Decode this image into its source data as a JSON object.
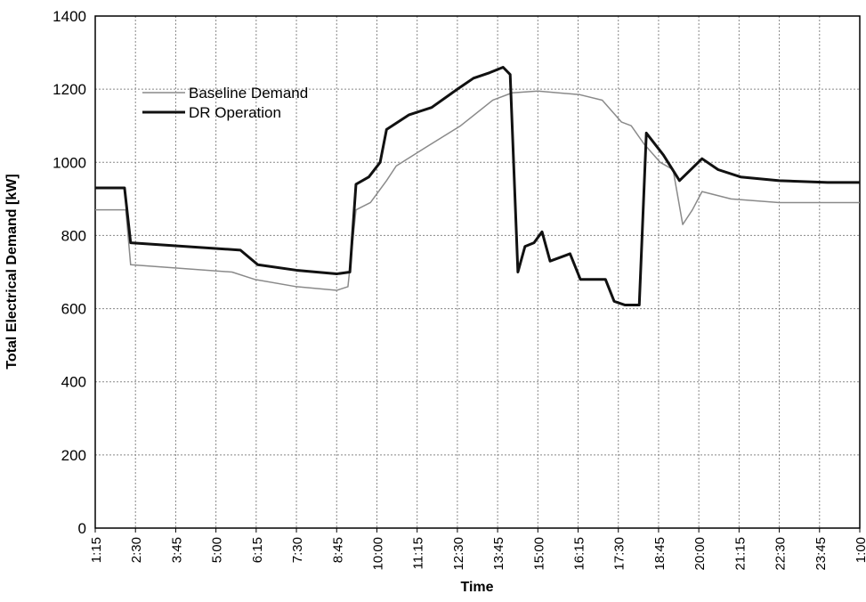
{
  "chart_data": {
    "type": "line",
    "x_label": "Time",
    "y_label": "Total Electrical Demand [kW]",
    "xlim": [
      1.25,
      25
    ],
    "xticks": [
      {
        "value": 1.25,
        "label": "1:15"
      },
      {
        "value": 2.5,
        "label": "2:30"
      },
      {
        "value": 3.75,
        "label": "3:45"
      },
      {
        "value": 5,
        "label": "5:00"
      },
      {
        "value": 6.25,
        "label": "6:15"
      },
      {
        "value": 7.5,
        "label": "7:30"
      },
      {
        "value": 8.75,
        "label": "8:45"
      },
      {
        "value": 10,
        "label": "10:00"
      },
      {
        "value": 11.25,
        "label": "11:15"
      },
      {
        "value": 12.5,
        "label": "12:30"
      },
      {
        "value": 13.75,
        "label": "13:45"
      },
      {
        "value": 15,
        "label": "15:00"
      },
      {
        "value": 16.25,
        "label": "16:15"
      },
      {
        "value": 17.5,
        "label": "17:30"
      },
      {
        "value": 18.75,
        "label": "18:45"
      },
      {
        "value": 20,
        "label": "20:00"
      },
      {
        "value": 21.25,
        "label": "21:15"
      },
      {
        "value": 22.5,
        "label": "22:30"
      },
      {
        "value": 23.75,
        "label": "23:45"
      },
      {
        "value": 25,
        "label": "1:00"
      }
    ],
    "ylim": [
      0,
      1400
    ],
    "yticks": [
      0,
      200,
      400,
      600,
      800,
      1000,
      1200,
      1400
    ],
    "grid": true,
    "legend": "upper left",
    "series": [
      {
        "name": "Baseline Demand",
        "color": "#8a8a8a",
        "width": 1.5,
        "x": [
          1.25,
          2.2,
          2.35,
          5.5,
          6.2,
          7.5,
          8.75,
          9.1,
          9.35,
          9.8,
          10.3,
          10.6,
          11.5,
          12.6,
          13.6,
          14.2,
          15.0,
          16.3,
          17.0,
          17.6,
          17.9,
          18.3,
          18.8,
          19.2,
          19.5,
          19.8,
          20.1,
          21.0,
          22.5,
          25
        ],
        "values": [
          870,
          870,
          720,
          700,
          680,
          660,
          650,
          660,
          870,
          890,
          950,
          990,
          1040,
          1100,
          1170,
          1190,
          1195,
          1185,
          1170,
          1110,
          1100,
          1050,
          1000,
          980,
          830,
          870,
          920,
          900,
          890,
          890
        ]
      },
      {
        "name": "DR Operation",
        "color": "#111111",
        "width": 3,
        "x": [
          1.25,
          2.16,
          2.35,
          5.76,
          6.3,
          7.5,
          8.75,
          9.16,
          9.35,
          9.75,
          10.1,
          10.3,
          11.0,
          11.7,
          12.5,
          13.0,
          13.5,
          13.92,
          14.14,
          14.38,
          14.6,
          14.88,
          15.13,
          15.38,
          16.0,
          16.32,
          17.1,
          17.37,
          17.7,
          18.15,
          18.37,
          18.9,
          19.4,
          20.1,
          20.6,
          21.3,
          22.5,
          24,
          25
        ],
        "values": [
          930,
          930,
          780,
          760,
          720,
          705,
          695,
          700,
          940,
          960,
          1000,
          1090,
          1130,
          1150,
          1200,
          1230,
          1245,
          1260,
          1240,
          700,
          770,
          780,
          810,
          730,
          750,
          680,
          680,
          620,
          610,
          610,
          1080,
          1020,
          950,
          1010,
          980,
          960,
          950,
          945,
          945
        ]
      }
    ]
  }
}
